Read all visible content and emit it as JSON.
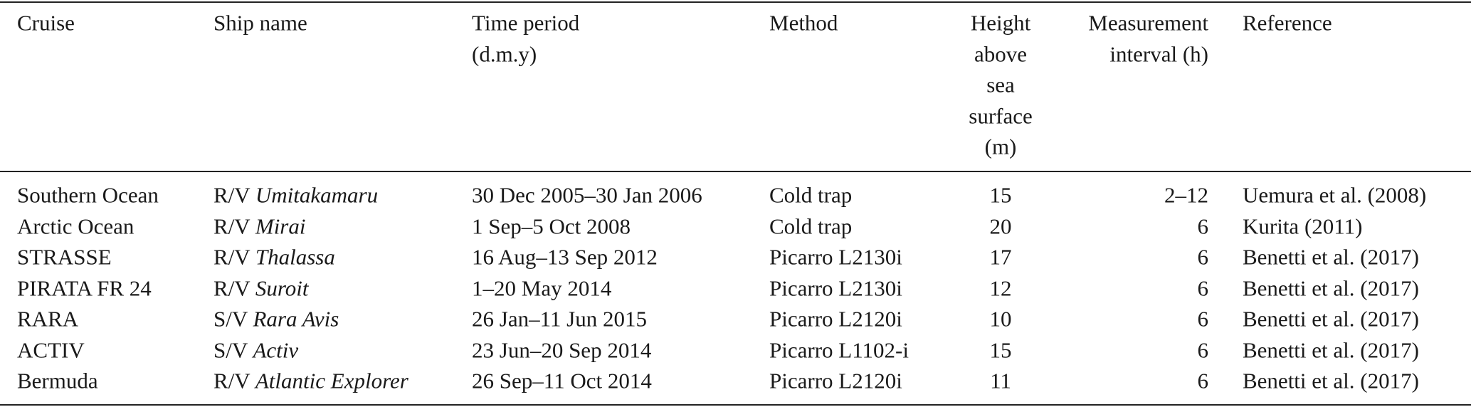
{
  "table": {
    "header": [
      [
        "Cruise"
      ],
      [
        "Ship name"
      ],
      [
        "Time period",
        "(d.m.y)"
      ],
      [
        "Method"
      ],
      [
        "Height",
        "above",
        "sea",
        "surface",
        "(m)"
      ],
      [
        "Measurement",
        "interval (h)"
      ],
      [
        "Reference"
      ]
    ],
    "rows": [
      [
        "Southern Ocean",
        {
          "prefix": "R/V",
          "name": "Umitakamaru"
        },
        "30 Dec 2005–30 Jan 2006",
        "Cold trap",
        15,
        "2–12",
        "Uemura et al. (2008)"
      ],
      [
        "Arctic Ocean",
        {
          "prefix": "R/V",
          "name": "Mirai"
        },
        "1 Sep–5 Oct 2008",
        "Cold trap",
        20,
        6,
        "Kurita (2011)"
      ],
      [
        "STRASSE",
        {
          "prefix": "R/V",
          "name": "Thalassa"
        },
        "16 Aug–13 Sep 2012",
        "Picarro L2130i",
        17,
        6,
        "Benetti et al. (2017)"
      ],
      [
        "PIRATA FR 24",
        {
          "prefix": "R/V",
          "name": "Suroit"
        },
        "1–20 May 2014",
        "Picarro L2130i",
        12,
        6,
        "Benetti et al. (2017)"
      ],
      [
        "RARA",
        {
          "prefix": "S/V",
          "name": "Rara Avis"
        },
        "26 Jan–11 Jun 2015",
        "Picarro L2120i",
        10,
        6,
        "Benetti et al. (2017)"
      ],
      [
        "ACTIV",
        {
          "prefix": "S/V",
          "name": "Activ"
        },
        "23 Jun–20 Sep 2014",
        "Picarro L1102-i",
        15,
        6,
        "Benetti et al. (2017)"
      ],
      [
        "Bermuda",
        {
          "prefix": "R/V",
          "name": "Atlantic Explorer"
        },
        "26 Sep–11 Oct 2014",
        "Picarro L2120i",
        11,
        6,
        "Benetti et al. (2017)"
      ]
    ]
  }
}
